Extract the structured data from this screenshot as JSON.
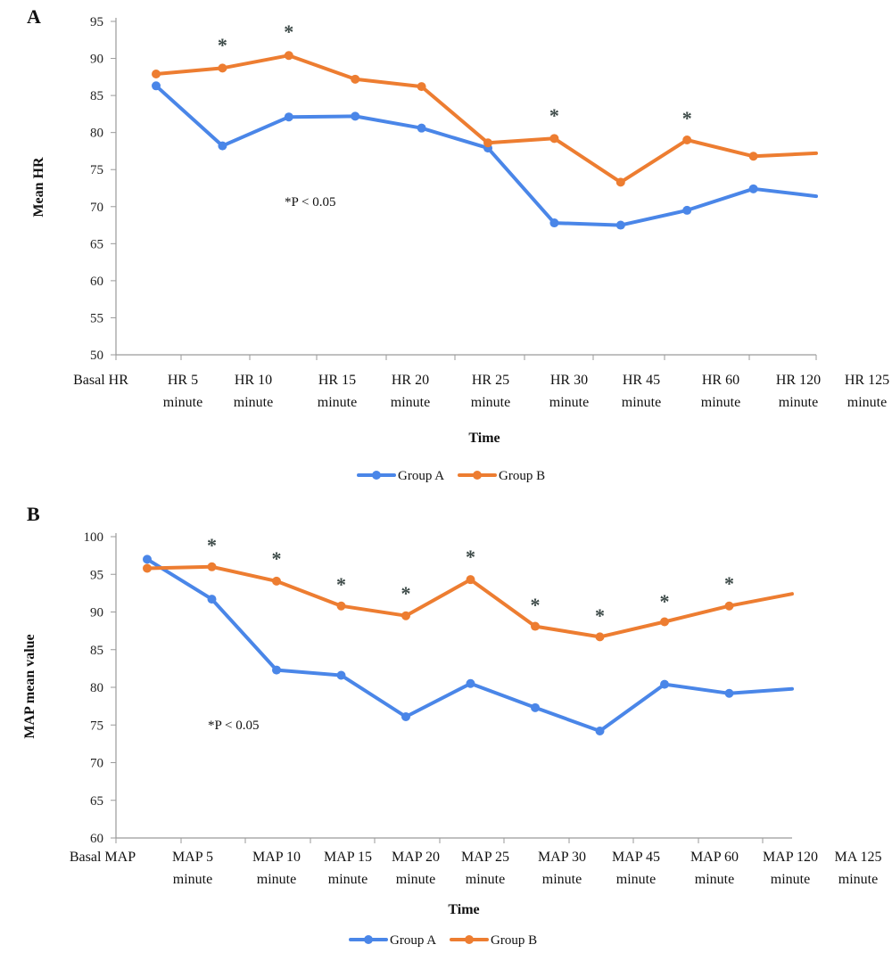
{
  "colors": {
    "group_a": "#4a86e8",
    "group_b": "#ed7d31",
    "axis": "#9a9a9a",
    "star": "#3d4a48"
  },
  "chart_data": [
    {
      "type": "line",
      "panel_label": "A",
      "title": "",
      "xlabel": "Time",
      "ylabel": "Mean HR",
      "ylim": [
        50,
        95
      ],
      "y_ticks": [
        50,
        55,
        60,
        65,
        70,
        75,
        80,
        85,
        90,
        95
      ],
      "categories": [
        [
          "Basal HR"
        ],
        [
          "HR 5",
          "minute"
        ],
        [
          "HR 10",
          "minute"
        ],
        [
          "HR 15",
          "minute"
        ],
        [
          "HR 20",
          "minute"
        ],
        [
          "HR 25",
          "minute"
        ],
        [
          "HR 30",
          "minute"
        ],
        [
          "HR 45",
          "minute"
        ],
        [
          "HR 60",
          "minute"
        ],
        [
          "HR 120",
          "minute"
        ],
        [
          "HR 125",
          "minute"
        ]
      ],
      "series": [
        {
          "name": "Group A",
          "color": "#4a86e8",
          "values": [
            86.3,
            78.2,
            82.1,
            82.2,
            80.6,
            77.9,
            67.8,
            67.5,
            69.5,
            72.4,
            71.4
          ]
        },
        {
          "name": "Group B",
          "color": "#ed7d31",
          "values": [
            87.9,
            88.7,
            90.4,
            87.2,
            86.2,
            78.6,
            79.2,
            73.3,
            79.0,
            76.8,
            77.2
          ]
        }
      ],
      "significance_marks": [
        "*",
        "*",
        "*",
        "*"
      ],
      "significance_at": [
        1,
        2,
        6,
        8
      ],
      "significance_note": "*P < 0.05",
      "legend": [
        "Group A",
        "Group B"
      ],
      "legend_position": "bottom-center",
      "grid": false
    },
    {
      "type": "line",
      "panel_label": "B",
      "title": "",
      "xlabel": "Time",
      "ylabel": "MAP mean value",
      "ylim": [
        60,
        100
      ],
      "y_ticks": [
        60,
        65,
        70,
        75,
        80,
        85,
        90,
        95,
        100
      ],
      "categories": [
        [
          "Basal MAP"
        ],
        [
          "MAP 5",
          "minute"
        ],
        [
          "MAP 10",
          "minute"
        ],
        [
          "MAP 15",
          "minute"
        ],
        [
          "MAP 20",
          "minute"
        ],
        [
          "MAP 25",
          "minute"
        ],
        [
          "MAP 30",
          "minute"
        ],
        [
          "MAP 45",
          "minute"
        ],
        [
          "MAP 60",
          "minute"
        ],
        [
          "MAP 120",
          "minute"
        ],
        [
          "MA 125",
          "minute"
        ]
      ],
      "series": [
        {
          "name": "Group A",
          "color": "#4a86e8",
          "values": [
            97.0,
            91.7,
            82.3,
            81.6,
            76.1,
            80.5,
            77.3,
            74.2,
            80.4,
            79.2,
            79.8
          ]
        },
        {
          "name": "Group B",
          "color": "#ed7d31",
          "values": [
            95.8,
            96.0,
            94.1,
            90.8,
            89.5,
            94.3,
            88.1,
            86.7,
            88.7,
            90.8,
            92.4
          ]
        }
      ],
      "significance_marks": [
        "*",
        "*",
        "*",
        "*",
        "*",
        "*",
        "*",
        "*",
        "*"
      ],
      "significance_at": [
        1,
        2,
        3,
        4,
        5,
        6,
        7,
        8,
        9
      ],
      "significance_note": "*P < 0.05",
      "legend": [
        "Group A",
        "Group B"
      ],
      "legend_position": "bottom-center",
      "grid": false
    }
  ]
}
